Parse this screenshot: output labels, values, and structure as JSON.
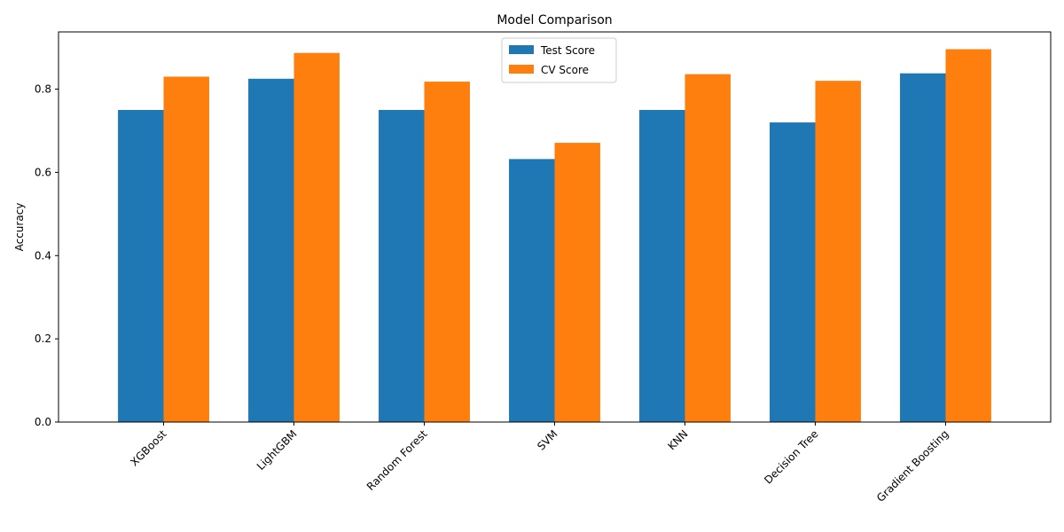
{
  "chart_data": {
    "type": "bar",
    "title": "Model Comparison",
    "xlabel": "",
    "ylabel": "Accuracy",
    "categories": [
      "XGBoost",
      "LightGBM",
      "Random Forest",
      "SVM",
      "KNN",
      "Decision Tree",
      "Gradient Boosting"
    ],
    "series": [
      {
        "name": "Test Score",
        "color": "#1f77b4",
        "values": [
          0.75,
          0.825,
          0.75,
          0.632,
          0.75,
          0.72,
          0.838
        ]
      },
      {
        "name": "CV Score",
        "color": "#ff7f0e",
        "values": [
          0.83,
          0.887,
          0.818,
          0.671,
          0.836,
          0.82,
          0.896
        ]
      }
    ],
    "ylim": [
      0,
      0.9375
    ],
    "yticks": [
      0.0,
      0.2,
      0.4,
      0.6,
      0.8
    ],
    "ytick_labels": [
      "0.0",
      "0.2",
      "0.4",
      "0.6",
      "0.8"
    ],
    "xtick_rotation": 45,
    "grid": false,
    "legend_position": "upper-center"
  }
}
